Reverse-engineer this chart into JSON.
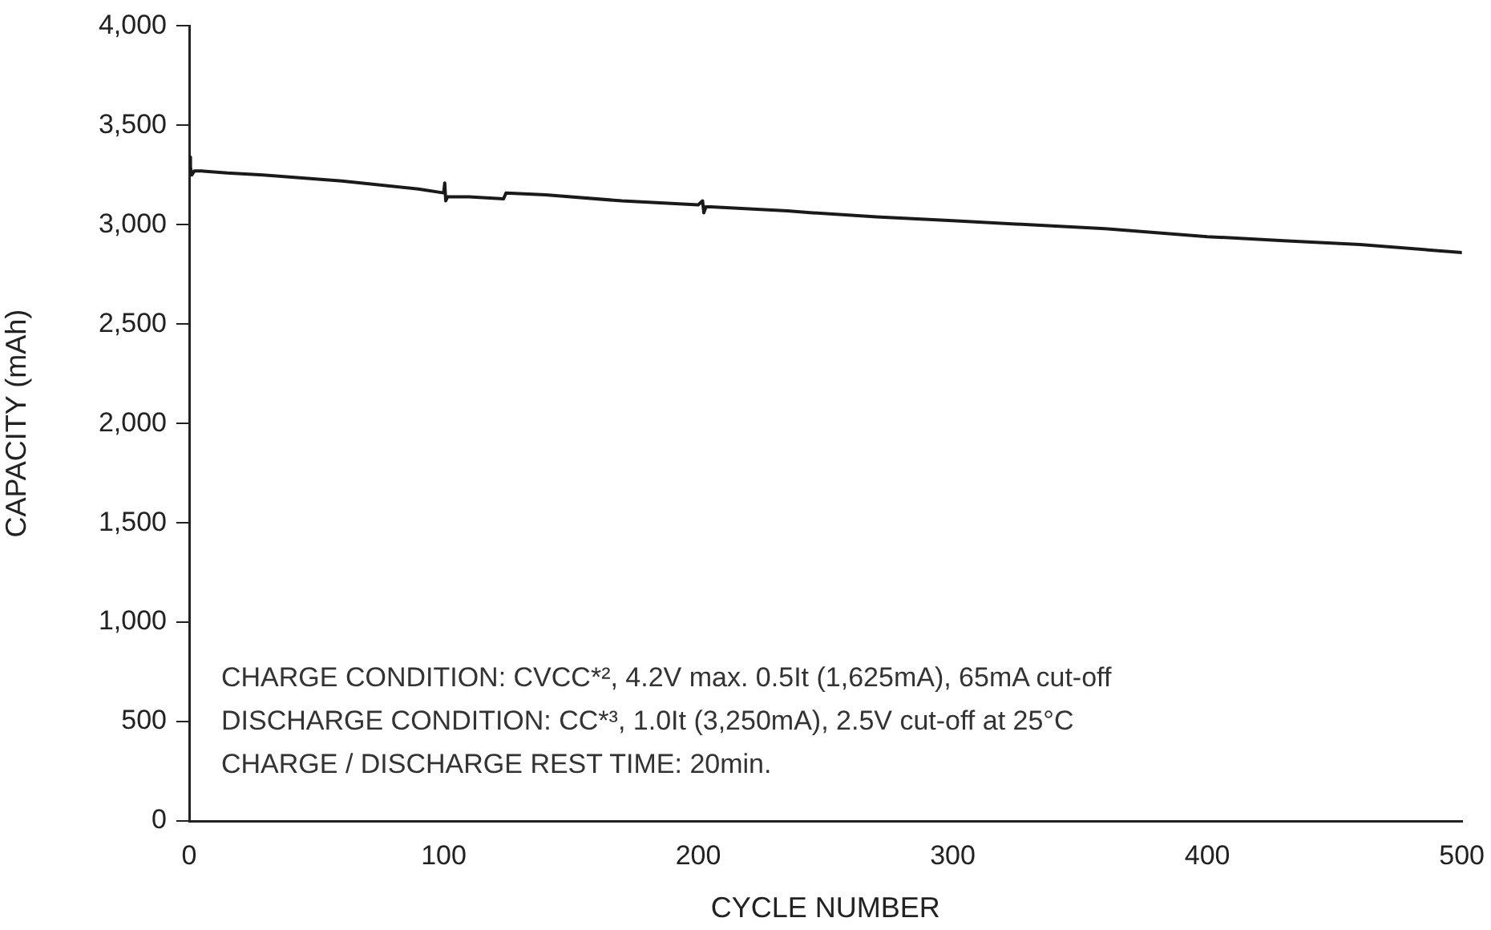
{
  "chart_data": {
    "type": "line",
    "xlabel": "CYCLE NUMBER",
    "ylabel": "CAPACITY (mAh)",
    "series": [
      {
        "color": "#1a1a1a",
        "x": [
          0,
          0.5,
          1,
          2,
          5,
          15,
          29,
          60,
          90,
          100,
          100.4,
          100.8,
          101.5,
          110,
          123.5,
          124.5,
          140,
          170,
          200,
          201.7,
          202.2,
          203,
          205,
          220,
          235,
          245,
          270,
          300,
          330,
          360,
          400,
          430,
          460,
          500
        ],
        "values": [
          3340,
          3290,
          3250,
          3270,
          3270,
          3260,
          3250,
          3220,
          3180,
          3160,
          3210,
          3120,
          3140,
          3140,
          3130,
          3160,
          3150,
          3120,
          3100,
          3120,
          3060,
          3090,
          3090,
          3080,
          3070,
          3060,
          3040,
          3020,
          3000,
          2980,
          2940,
          2920,
          2900,
          2860
        ]
      }
    ],
    "xlim": [
      0,
      500
    ],
    "xticks": [
      0,
      100,
      200,
      300,
      400,
      500
    ],
    "ylim": [
      0,
      4000
    ],
    "yticks": [
      0,
      500,
      {
        "value": 1000,
        "label": "1,000"
      },
      {
        "value": 1500,
        "label": "1,500"
      },
      {
        "value": 2000,
        "label": "2,000"
      },
      {
        "value": 2500,
        "label": "2,500"
      },
      {
        "value": 3000,
        "label": "3,000"
      },
      {
        "value": 3500,
        "label": "3,500"
      },
      {
        "value": 4000,
        "label": "4,000"
      }
    ],
    "grid": false,
    "legend": false,
    "marker": "none",
    "line_style": "solid",
    "annotations": [
      "CHARGE CONDITION: CVCC*², 4.2V max. 0.5It (1,625mA), 65mA cut-off",
      "DISCHARGE CONDITION: CC*³, 1.0It (3,250mA), 2.5V cut-off at 25°C",
      "CHARGE / DISCHARGE REST TIME: 20min."
    ]
  }
}
